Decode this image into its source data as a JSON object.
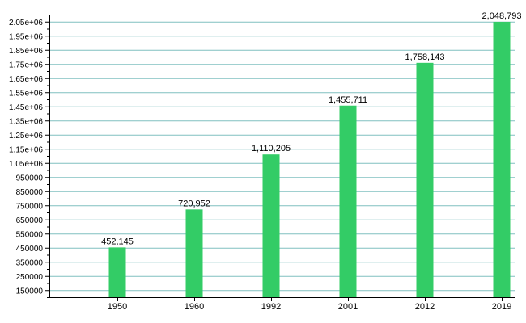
{
  "chart_data": {
    "type": "bar",
    "categories": [
      "1950",
      "1960",
      "1992",
      "2001",
      "2012",
      "2019"
    ],
    "values": [
      452145,
      720952,
      1110205,
      1455711,
      1758143,
      2048793
    ],
    "data_labels": [
      "452,145",
      "720,952",
      "1,110,205",
      "1,455,711",
      "1,758,143",
      "2,048,793"
    ],
    "title": "",
    "xlabel": "",
    "ylabel": "",
    "ylim": [
      100000,
      2100000
    ],
    "yticks": [
      {
        "value": 150000,
        "label": "150000"
      },
      {
        "value": 250000,
        "label": "250000"
      },
      {
        "value": 350000,
        "label": "350000"
      },
      {
        "value": 450000,
        "label": "450000"
      },
      {
        "value": 550000,
        "label": "550000"
      },
      {
        "value": 650000,
        "label": "650000"
      },
      {
        "value": 750000,
        "label": "750000"
      },
      {
        "value": 850000,
        "label": "850000"
      },
      {
        "value": 950000,
        "label": "950000"
      },
      {
        "value": 1050000,
        "label": "1.05e+06"
      },
      {
        "value": 1150000,
        "label": "1.15e+06"
      },
      {
        "value": 1250000,
        "label": "1.25e+06"
      },
      {
        "value": 1350000,
        "label": "1.35e+06"
      },
      {
        "value": 1450000,
        "label": "1.45e+06"
      },
      {
        "value": 1550000,
        "label": "1.55e+06"
      },
      {
        "value": 1650000,
        "label": "1.65e+06"
      },
      {
        "value": 1750000,
        "label": "1.75e+06"
      },
      {
        "value": 1850000,
        "label": "1.85e+06"
      },
      {
        "value": 1950000,
        "label": "1.95e+06"
      },
      {
        "value": 2050000,
        "label": "2.05e+06"
      }
    ],
    "grid": true,
    "legend": "none",
    "colors": {
      "bar": "#33cc66",
      "grid": "#80c0c0",
      "axis": "#000000"
    }
  }
}
